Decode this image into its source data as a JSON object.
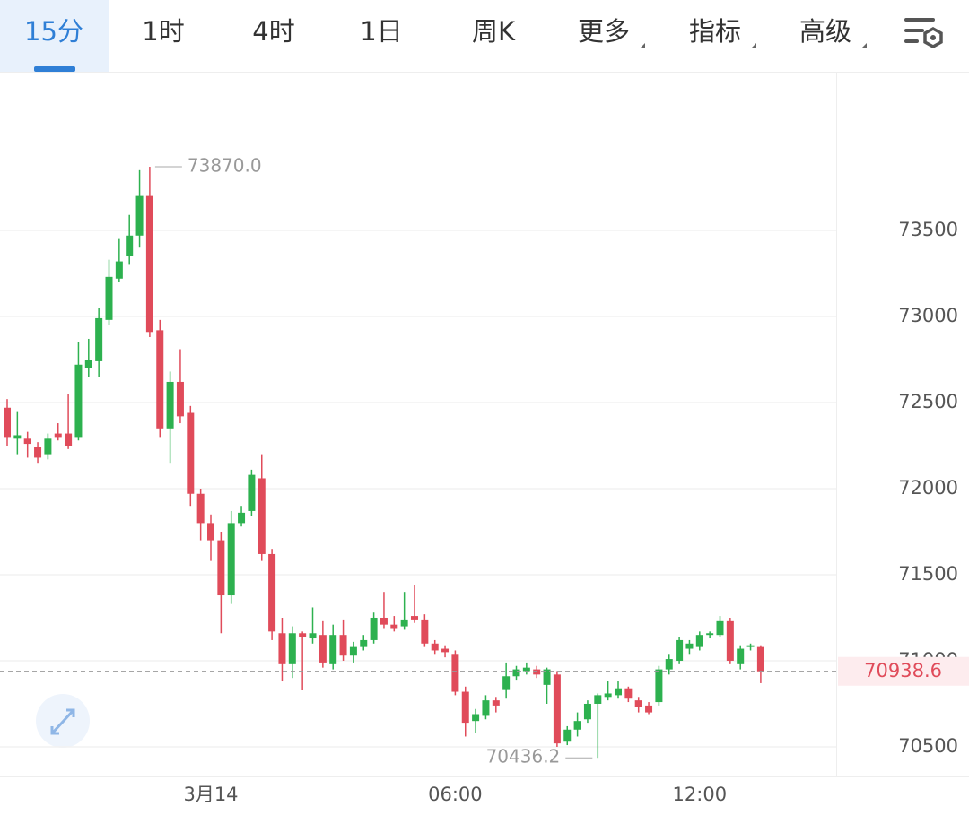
{
  "tabs": [
    "15分",
    "1时",
    "4时",
    "1日",
    "周K",
    "更多",
    "指标",
    "高级"
  ],
  "active_tab": 0,
  "chart_data": {
    "type": "candlestick",
    "categories": [
      null,
      null,
      null,
      null,
      null,
      null,
      null,
      null,
      null,
      null,
      null,
      null,
      null,
      null,
      null,
      null,
      null,
      null,
      null,
      null,
      "3月14",
      null,
      null,
      null,
      null,
      null,
      null,
      null,
      null,
      null,
      null,
      null,
      null,
      null,
      null,
      null,
      null,
      null,
      null,
      null,
      null,
      null,
      null,
      null,
      "06:00",
      null,
      null,
      null,
      null,
      null,
      null,
      null,
      null,
      null,
      null,
      null,
      null,
      null,
      null,
      null,
      null,
      null,
      null,
      null,
      null,
      null,
      null,
      null,
      "12:00",
      null,
      null,
      null,
      null,
      null,
      null
    ],
    "open": [
      72470,
      72290,
      72290,
      72240,
      72200,
      72320,
      72320,
      72300,
      72700,
      72740,
      72980,
      73220,
      73350,
      73470,
      73700,
      72920,
      72350,
      72620,
      72440,
      71970,
      71800,
      71700,
      71380,
      71800,
      71870,
      72060,
      71620,
      71160,
      70980,
      71160,
      71130,
      71150,
      70980,
      71150,
      71030,
      71080,
      71120,
      71250,
      71210,
      71200,
      71260,
      71240,
      71100,
      71070,
      71040,
      70820,
      70650,
      70680,
      70770,
      70830,
      70910,
      70940,
      70950,
      70860,
      70920,
      70530,
      70600,
      70660,
      70750,
      70790,
      70800,
      70840,
      70770,
      70740,
      70760,
      70950,
      71000,
      71070,
      71080,
      71150,
      71150,
      71230,
      70980,
      71080,
      71080
    ],
    "high": [
      72520,
      72450,
      72330,
      72270,
      72320,
      72380,
      72550,
      72850,
      72870,
      73050,
      73330,
      73450,
      73590,
      73850,
      73870,
      72980,
      72680,
      72810,
      72480,
      72000,
      71850,
      71750,
      71870,
      71900,
      72110,
      72200,
      71650,
      71250,
      71200,
      71170,
      71310,
      71230,
      71210,
      71240,
      71110,
      71150,
      71280,
      71400,
      71260,
      71400,
      71440,
      71270,
      71120,
      71090,
      71060,
      70850,
      70720,
      70800,
      70790,
      70990,
      70970,
      70990,
      70970,
      70960,
      70940,
      70620,
      70700,
      70770,
      70810,
      70880,
      70880,
      70850,
      70790,
      70760,
      70970,
      71040,
      71140,
      71120,
      71170,
      71170,
      71260,
      71250,
      71090,
      71100,
      71090
    ],
    "low": [
      72250,
      72200,
      72180,
      72150,
      72170,
      72280,
      72230,
      72280,
      72650,
      72650,
      72950,
      73200,
      73300,
      73400,
      72880,
      72300,
      72150,
      72380,
      71900,
      71700,
      71580,
      71160,
      71330,
      71780,
      71840,
      71580,
      71120,
      70880,
      70900,
      70828,
      71100,
      70960,
      70950,
      71000,
      70990,
      71060,
      71100,
      71190,
      71170,
      71180,
      71220,
      71080,
      71040,
      71020,
      70800,
      70560,
      70580,
      70660,
      70700,
      70780,
      70890,
      70920,
      70900,
      70750,
      70500,
      70510,
      70560,
      70640,
      70436.2,
      70770,
      70780,
      70760,
      70700,
      70690,
      70740,
      70920,
      70980,
      71040,
      71060,
      71130,
      71140,
      70980,
      70950,
      71060,
      70870
    ],
    "close": [
      72300,
      72310,
      72260,
      72180,
      72290,
      72300,
      72250,
      72720,
      72750,
      72990,
      73230,
      73320,
      73470,
      73700,
      72910,
      72350,
      72620,
      72420,
      71970,
      71800,
      71700,
      71380,
      71800,
      71860,
      72080,
      71620,
      71170,
      70980,
      71160,
      71140,
      71160,
      70990,
      71150,
      71030,
      71080,
      71120,
      71250,
      71210,
      71190,
      71240,
      71240,
      71100,
      71060,
      71050,
      70820,
      70640,
      70690,
      70770,
      70740,
      70910,
      70950,
      70960,
      70920,
      70950,
      70520,
      70600,
      70650,
      70750,
      70800,
      70810,
      70840,
      70780,
      70730,
      70700,
      70950,
      71010,
      71120,
      71100,
      71150,
      71160,
      71230,
      71000,
      71070,
      71090,
      70938.6
    ],
    "ylim": [
      70328,
      74422
    ],
    "yticks": [
      70500,
      71000,
      71500,
      72000,
      72500,
      73000,
      73500
    ],
    "grid": true,
    "last_price": 70938.6,
    "annotations": [
      {
        "value": 73870,
        "label": "73870.0"
      },
      {
        "value": 70436.2,
        "label": "70436.2"
      }
    ],
    "up_color": "#2db14f",
    "down_color": "#e04b5a"
  }
}
